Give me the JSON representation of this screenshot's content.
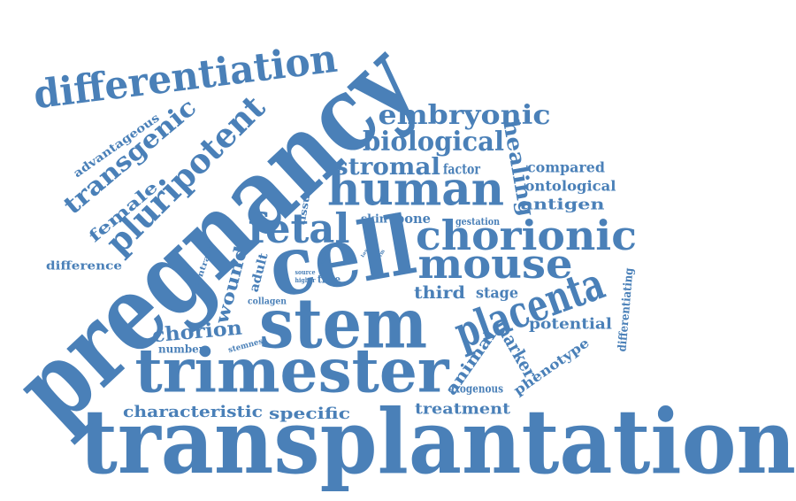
{
  "color": "#4a80b8",
  "words": [
    {
      "id": "transplantation",
      "text": "transplantation"
    },
    {
      "id": "pregnancy",
      "text": "pregnancy"
    },
    {
      "id": "stem",
      "text": "stem"
    },
    {
      "id": "trimester",
      "text": "trimester"
    },
    {
      "id": "cell",
      "text": "cell"
    },
    {
      "id": "differentiation",
      "text": "differentiation"
    },
    {
      "id": "human",
      "text": "human"
    },
    {
      "id": "fetal",
      "text": "fetal"
    },
    {
      "id": "chorionic",
      "text": "chorionic"
    },
    {
      "id": "mouse",
      "text": "mouse"
    },
    {
      "id": "placenta",
      "text": "placenta"
    },
    {
      "id": "pluripotent",
      "text": "pluripotent"
    },
    {
      "id": "embryonic",
      "text": "embryonic"
    },
    {
      "id": "biological",
      "text": "biological"
    },
    {
      "id": "stromal",
      "text": "stromal"
    },
    {
      "id": "transgenic",
      "text": "transgenic"
    },
    {
      "id": "healing",
      "text": "healing"
    },
    {
      "id": "characteristic",
      "text": "characteristic"
    },
    {
      "id": "specific",
      "text": "specific"
    },
    {
      "id": "chorion",
      "text": "chorion"
    },
    {
      "id": "wound",
      "text": "wound"
    },
    {
      "id": "treatment",
      "text": "treatment"
    },
    {
      "id": "animal",
      "text": "animal"
    },
    {
      "id": "marker",
      "text": "marker"
    },
    {
      "id": "third",
      "text": "third"
    },
    {
      "id": "stage",
      "text": "stage"
    },
    {
      "id": "potential",
      "text": "potential"
    },
    {
      "id": "phenotype",
      "text": "phenotype"
    },
    {
      "id": "female",
      "text": "female"
    },
    {
      "id": "advantageous",
      "text": "advantageous"
    },
    {
      "id": "difference",
      "text": "difference"
    },
    {
      "id": "tissue",
      "text": "tissue"
    },
    {
      "id": "contrast",
      "text": "contrast"
    },
    {
      "id": "adult",
      "text": "adult"
    },
    {
      "id": "collagen",
      "text": "collagen"
    },
    {
      "id": "number",
      "text": "number"
    },
    {
      "id": "stemness",
      "text": "stemness"
    },
    {
      "id": "factor",
      "text": "factor"
    },
    {
      "id": "compared",
      "text": "compared"
    },
    {
      "id": "ontological",
      "text": "ontological"
    },
    {
      "id": "antigen",
      "text": "antigen"
    },
    {
      "id": "skin",
      "text": "skin"
    },
    {
      "id": "bone",
      "text": "bone"
    },
    {
      "id": "gestation",
      "text": "gestation"
    },
    {
      "id": "time",
      "text": "time"
    },
    {
      "id": "source",
      "text": "source"
    },
    {
      "id": "higher",
      "text": "higher"
    },
    {
      "id": "ssea",
      "text": "ssea"
    },
    {
      "id": "germ",
      "text": "germ"
    },
    {
      "id": "exogenous",
      "text": "exogenous"
    },
    {
      "id": "differentiating",
      "text": "differentiating"
    },
    {
      "id": "lay",
      "text": "lay"
    }
  ]
}
